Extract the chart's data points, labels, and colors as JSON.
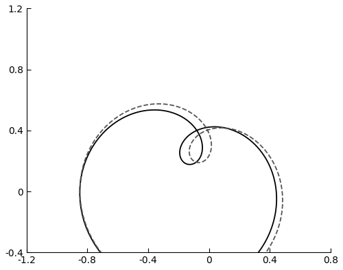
{
  "xlim": [
    -1.2,
    0.8
  ],
  "ylim": [
    -0.4,
    1.2
  ],
  "xticks": [
    -1.2,
    -0.8,
    -0.4,
    0.0,
    0.4,
    0.8
  ],
  "yticks": [
    -0.4,
    0.0,
    0.4,
    0.8,
    1.2
  ],
  "xtick_labels": [
    "-1.2",
    "-0.8",
    "-0.4",
    "0",
    "0.4",
    "0.8"
  ],
  "ytick_labels": [
    "-0.4",
    "0",
    "0.4",
    "0.8",
    "1.2"
  ],
  "solid_color": "#000000",
  "dashed_color": "#555555",
  "linewidth": 1.3,
  "background_color": "#ffffff",
  "n_points": 2000
}
